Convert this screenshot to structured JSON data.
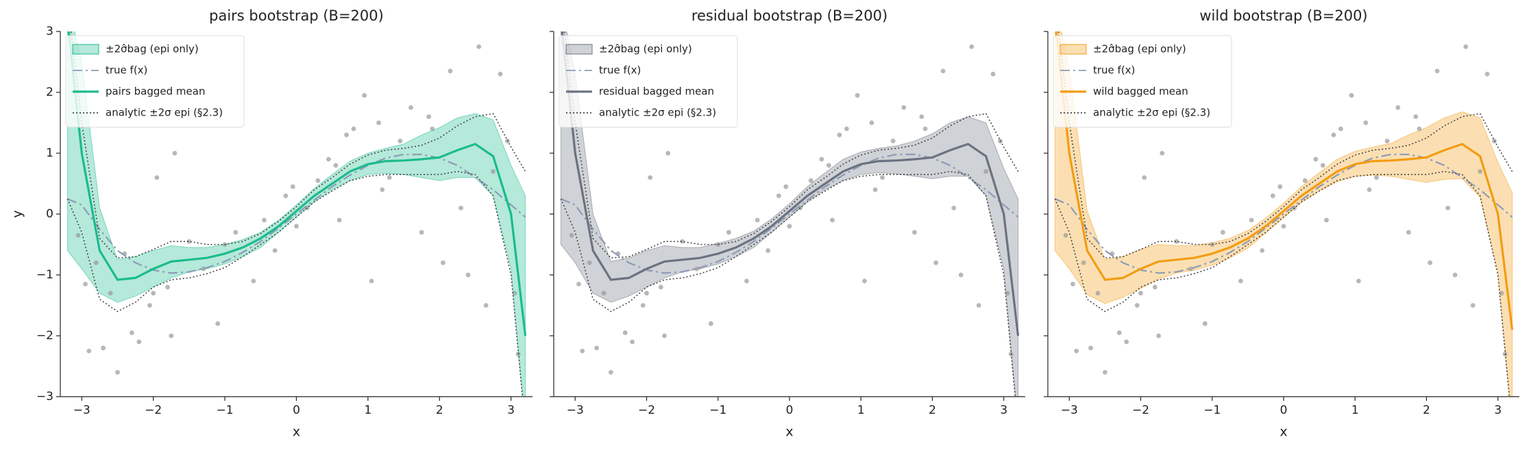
{
  "chart_data": [
    {
      "type": "line",
      "title": "pairs bootstrap (B=200)",
      "xlabel": "x",
      "ylabel": "y",
      "ytick_labels": true,
      "xlim": [
        -3.3,
        3.3
      ],
      "ylim": [
        -3,
        3
      ],
      "xticks": [
        {
          "value": -3,
          "label": "−3"
        },
        {
          "value": -2,
          "label": "−2"
        },
        {
          "value": -1,
          "label": "−1"
        },
        0,
        1,
        2,
        3
      ],
      "yticks": [
        {
          "value": -3,
          "label": "−3"
        },
        {
          "value": -2,
          "label": "−2"
        },
        {
          "value": -1,
          "label": "−1"
        },
        0,
        1,
        2,
        3
      ],
      "legend": "upper left",
      "x": [
        -3.2,
        -3,
        -2.75,
        -2.5,
        -2.25,
        -2,
        -1.75,
        -1.5,
        -1.25,
        -1,
        -0.75,
        -0.5,
        -0.25,
        0,
        0.25,
        0.5,
        0.75,
        1,
        1.25,
        1.5,
        1.75,
        2,
        2.25,
        2.5,
        2.75,
        3,
        3.2
      ],
      "series": [
        {
          "name": "±2σ̂bag (epi only)",
          "kind": "band",
          "color": "#1abc8c",
          "upper": [
            3.5,
            2.5,
            0.1,
            -0.75,
            -0.7,
            -0.6,
            -0.52,
            -0.55,
            -0.55,
            -0.5,
            -0.42,
            -0.3,
            -0.1,
            0.15,
            0.42,
            0.65,
            0.87,
            1.0,
            1.08,
            1.15,
            1.3,
            1.42,
            1.58,
            1.65,
            1.55,
            0.8,
            0.3
          ],
          "lower": [
            -0.6,
            -0.9,
            -1.3,
            -1.45,
            -1.35,
            -1.2,
            -1.05,
            -0.95,
            -0.9,
            -0.82,
            -0.7,
            -0.55,
            -0.3,
            -0.05,
            0.2,
            0.4,
            0.55,
            0.65,
            0.67,
            0.65,
            0.6,
            0.55,
            0.6,
            0.6,
            0.3,
            -0.9,
            -3.5
          ]
        },
        {
          "name": "true f(x)",
          "kind": "line",
          "style": "dashdot",
          "color": "#8c9bb5",
          "values": [
            0.25,
            0.15,
            -0.25,
            -0.6,
            -0.8,
            -0.92,
            -0.97,
            -0.95,
            -0.88,
            -0.78,
            -0.63,
            -0.45,
            -0.23,
            0,
            0.23,
            0.45,
            0.64,
            0.8,
            0.92,
            0.98,
            0.98,
            0.92,
            0.8,
            0.6,
            0.4,
            0.15,
            -0.05
          ]
        },
        {
          "name": "pairs bagged mean",
          "kind": "line",
          "style": "solid",
          "color": "#1abc8c",
          "values": [
            3.2,
            1.0,
            -0.6,
            -1.08,
            -1.05,
            -0.9,
            -0.78,
            -0.75,
            -0.72,
            -0.65,
            -0.55,
            -0.4,
            -0.2,
            0.05,
            0.3,
            0.5,
            0.7,
            0.82,
            0.87,
            0.88,
            0.9,
            0.93,
            1.05,
            1.15,
            0.95,
            0.0,
            -2.0
          ]
        },
        {
          "name": "analytic ±2σ epi (§2.3)",
          "kind": "bounds",
          "style": "dotted",
          "color": "#444444",
          "upper": [
            3.5,
            1.5,
            -0.4,
            -0.72,
            -0.7,
            -0.58,
            -0.45,
            -0.45,
            -0.5,
            -0.5,
            -0.45,
            -0.32,
            -0.12,
            0.12,
            0.4,
            0.6,
            0.82,
            0.97,
            1.05,
            1.08,
            1.13,
            1.25,
            1.45,
            1.6,
            1.65,
            1.1,
            0.7
          ],
          "lower": [
            0.25,
            -0.3,
            -1.4,
            -1.6,
            -1.45,
            -1.2,
            -1.08,
            -1.05,
            -0.98,
            -0.88,
            -0.7,
            -0.5,
            -0.3,
            -0.05,
            0.2,
            0.38,
            0.55,
            0.62,
            0.65,
            0.65,
            0.65,
            0.65,
            0.7,
            0.65,
            0.3,
            -1.0,
            -3.5
          ]
        }
      ],
      "points": {
        "color": "#999999",
        "x": [
          -3.05,
          -2.95,
          -2.9,
          -2.8,
          -2.7,
          -2.6,
          -2.5,
          -2.4,
          -2.3,
          -2.2,
          -2.05,
          -1.95,
          -1.8,
          -1.75,
          -1.7,
          -1.5,
          -1.3,
          -1.1,
          -1.0,
          -0.85,
          -0.6,
          -0.45,
          -0.3,
          -0.15,
          0.0,
          0.15,
          0.3,
          0.45,
          0.6,
          0.7,
          0.8,
          0.95,
          1.05,
          1.15,
          1.3,
          1.45,
          1.6,
          1.75,
          1.9,
          2.05,
          2.15,
          2.3,
          2.4,
          2.55,
          2.65,
          2.75,
          2.85,
          2.95,
          3.05,
          3.1,
          1.85,
          -0.05,
          0.55,
          1.2,
          -2.0
        ],
        "y": [
          -0.35,
          -1.15,
          -2.25,
          -0.8,
          -2.2,
          -1.3,
          -2.6,
          -0.65,
          -1.95,
          -2.1,
          -1.5,
          0.6,
          -1.2,
          -2.0,
          1.0,
          -0.45,
          -0.9,
          -1.8,
          -0.5,
          -0.3,
          -1.1,
          -0.1,
          -0.6,
          0.3,
          -0.2,
          0.1,
          0.55,
          0.9,
          -0.1,
          1.3,
          1.4,
          1.95,
          -1.1,
          1.5,
          0.6,
          1.2,
          1.75,
          -0.3,
          1.4,
          -0.8,
          2.35,
          0.1,
          -1.0,
          2.75,
          -1.5,
          0.7,
          2.3,
          1.2,
          -1.3,
          -2.3,
          1.6,
          0.45,
          0.8,
          0.4,
          -1.3
        ]
      }
    },
    {
      "type": "line",
      "title": "residual bootstrap (B=200)",
      "xlabel": "x",
      "ytick_labels": false,
      "xlim": [
        -3.3,
        3.3
      ],
      "ylim": [
        -3,
        3
      ],
      "xticks": [
        {
          "value": -3,
          "label": "−3"
        },
        {
          "value": -2,
          "label": "−2"
        },
        {
          "value": -1,
          "label": "−1"
        },
        0,
        1,
        2,
        3
      ],
      "yticks": [
        -3,
        -2,
        -1,
        0,
        1,
        2,
        3
      ],
      "legend": "upper left",
      "x": [
        -3.2,
        -3,
        -2.75,
        -2.5,
        -2.25,
        -2,
        -1.75,
        -1.5,
        -1.25,
        -1,
        -0.75,
        -0.5,
        -0.25,
        0,
        0.25,
        0.5,
        0.75,
        1,
        1.25,
        1.5,
        1.75,
        2,
        2.25,
        2.5,
        2.75,
        3,
        3.2
      ],
      "series": [
        {
          "name": "±2σ̂bag (epi only)",
          "kind": "band",
          "color": "#6b7280",
          "upper": [
            3.5,
            2.3,
            0.0,
            -0.78,
            -0.72,
            -0.6,
            -0.52,
            -0.55,
            -0.55,
            -0.48,
            -0.4,
            -0.28,
            -0.08,
            0.17,
            0.45,
            0.68,
            0.9,
            1.02,
            1.08,
            1.12,
            1.2,
            1.32,
            1.5,
            1.6,
            1.5,
            0.75,
            0.25
          ],
          "lower": [
            -0.5,
            -0.8,
            -1.3,
            -1.45,
            -1.35,
            -1.2,
            -1.05,
            -0.95,
            -0.9,
            -0.82,
            -0.7,
            -0.55,
            -0.3,
            -0.05,
            0.2,
            0.4,
            0.55,
            0.65,
            0.68,
            0.66,
            0.62,
            0.58,
            0.62,
            0.62,
            0.3,
            -0.9,
            -3.5
          ]
        },
        {
          "name": "true f(x)",
          "kind": "line",
          "style": "dashdot",
          "color": "#8c9bb5",
          "values": [
            0.25,
            0.15,
            -0.25,
            -0.6,
            -0.8,
            -0.92,
            -0.97,
            -0.95,
            -0.88,
            -0.78,
            -0.63,
            -0.45,
            -0.23,
            0,
            0.23,
            0.45,
            0.64,
            0.8,
            0.92,
            0.98,
            0.98,
            0.92,
            0.8,
            0.6,
            0.4,
            0.15,
            -0.05
          ]
        },
        {
          "name": "residual bagged mean",
          "kind": "line",
          "style": "solid",
          "color": "#6b7280",
          "values": [
            3.2,
            1.0,
            -0.6,
            -1.08,
            -1.05,
            -0.9,
            -0.78,
            -0.75,
            -0.72,
            -0.65,
            -0.55,
            -0.4,
            -0.2,
            0.05,
            0.3,
            0.5,
            0.7,
            0.82,
            0.87,
            0.88,
            0.9,
            0.93,
            1.05,
            1.15,
            0.95,
            0.0,
            -2.0
          ]
        },
        {
          "name": "analytic ±2σ epi (§2.3)",
          "kind": "bounds",
          "style": "dotted",
          "color": "#444444",
          "upper": [
            3.5,
            1.5,
            -0.4,
            -0.72,
            -0.7,
            -0.58,
            -0.45,
            -0.45,
            -0.5,
            -0.5,
            -0.45,
            -0.32,
            -0.12,
            0.12,
            0.4,
            0.6,
            0.82,
            0.97,
            1.05,
            1.08,
            1.13,
            1.25,
            1.45,
            1.6,
            1.65,
            1.1,
            0.7
          ],
          "lower": [
            0.25,
            -0.3,
            -1.4,
            -1.6,
            -1.45,
            -1.2,
            -1.08,
            -1.05,
            -0.98,
            -0.88,
            -0.7,
            -0.5,
            -0.3,
            -0.05,
            0.2,
            0.38,
            0.55,
            0.62,
            0.65,
            0.65,
            0.65,
            0.65,
            0.7,
            0.65,
            0.3,
            -1.0,
            -3.5
          ]
        }
      ],
      "points": {
        "color": "#999999",
        "x": [
          -3.05,
          -2.95,
          -2.9,
          -2.8,
          -2.7,
          -2.6,
          -2.5,
          -2.4,
          -2.3,
          -2.2,
          -2.05,
          -1.95,
          -1.8,
          -1.75,
          -1.7,
          -1.5,
          -1.3,
          -1.1,
          -1.0,
          -0.85,
          -0.6,
          -0.45,
          -0.3,
          -0.15,
          0.0,
          0.15,
          0.3,
          0.45,
          0.6,
          0.7,
          0.8,
          0.95,
          1.05,
          1.15,
          1.3,
          1.45,
          1.6,
          1.75,
          1.9,
          2.05,
          2.15,
          2.3,
          2.4,
          2.55,
          2.65,
          2.75,
          2.85,
          2.95,
          3.05,
          3.1,
          1.85,
          -0.05,
          0.55,
          1.2,
          -2.0
        ],
        "y": [
          -0.35,
          -1.15,
          -2.25,
          -0.8,
          -2.2,
          -1.3,
          -2.6,
          -0.65,
          -1.95,
          -2.1,
          -1.5,
          0.6,
          -1.2,
          -2.0,
          1.0,
          -0.45,
          -0.9,
          -1.8,
          -0.5,
          -0.3,
          -1.1,
          -0.1,
          -0.6,
          0.3,
          -0.2,
          0.1,
          0.55,
          0.9,
          -0.1,
          1.3,
          1.4,
          1.95,
          -1.1,
          1.5,
          0.6,
          1.2,
          1.75,
          -0.3,
          1.4,
          -0.8,
          2.35,
          0.1,
          -1.0,
          2.75,
          -1.5,
          0.7,
          2.3,
          1.2,
          -1.3,
          -2.3,
          1.6,
          0.45,
          0.8,
          0.4,
          -1.3
        ]
      }
    },
    {
      "type": "line",
      "title": "wild bootstrap (B=200)",
      "xlabel": "x",
      "ytick_labels": false,
      "xlim": [
        -3.3,
        3.3
      ],
      "ylim": [
        -3,
        3
      ],
      "xticks": [
        {
          "value": -3,
          "label": "−3"
        },
        {
          "value": -2,
          "label": "−2"
        },
        {
          "value": -1,
          "label": "−1"
        },
        0,
        1,
        2,
        3
      ],
      "yticks": [
        -3,
        -2,
        -1,
        0,
        1,
        2,
        3
      ],
      "legend": "upper left",
      "x": [
        -3.2,
        -3,
        -2.75,
        -2.5,
        -2.25,
        -2,
        -1.75,
        -1.5,
        -1.25,
        -1,
        -0.75,
        -0.5,
        -0.25,
        0,
        0.25,
        0.5,
        0.75,
        1,
        1.25,
        1.5,
        1.75,
        2,
        2.25,
        2.5,
        2.75,
        3,
        3.2
      ],
      "series": [
        {
          "name": "±2σ̂bag (epi only)",
          "kind": "band",
          "color": "#f39c12",
          "upper": [
            3.5,
            2.4,
            0.05,
            -0.75,
            -0.7,
            -0.58,
            -0.5,
            -0.52,
            -0.52,
            -0.47,
            -0.4,
            -0.27,
            -0.07,
            0.18,
            0.45,
            0.68,
            0.9,
            1.03,
            1.1,
            1.16,
            1.3,
            1.42,
            1.58,
            1.68,
            1.58,
            0.85,
            0.35
          ],
          "lower": [
            -0.6,
            -0.9,
            -1.32,
            -1.47,
            -1.37,
            -1.22,
            -1.07,
            -0.97,
            -0.92,
            -0.84,
            -0.72,
            -0.56,
            -0.31,
            -0.06,
            0.19,
            0.38,
            0.53,
            0.62,
            0.64,
            0.62,
            0.57,
            0.52,
            0.57,
            0.58,
            0.28,
            -0.95,
            -3.5
          ]
        },
        {
          "name": "true f(x)",
          "kind": "line",
          "style": "dashdot",
          "color": "#8c9bb5",
          "values": [
            0.25,
            0.15,
            -0.25,
            -0.6,
            -0.8,
            -0.92,
            -0.97,
            -0.95,
            -0.88,
            -0.78,
            -0.63,
            -0.45,
            -0.23,
            0,
            0.23,
            0.45,
            0.64,
            0.8,
            0.92,
            0.98,
            0.98,
            0.92,
            0.8,
            0.6,
            0.4,
            0.15,
            -0.05
          ]
        },
        {
          "name": "wild bagged mean",
          "kind": "line",
          "style": "solid",
          "color": "#f39c12",
          "values": [
            3.2,
            1.0,
            -0.6,
            -1.08,
            -1.05,
            -0.9,
            -0.78,
            -0.75,
            -0.72,
            -0.65,
            -0.55,
            -0.4,
            -0.2,
            0.05,
            0.3,
            0.5,
            0.7,
            0.82,
            0.87,
            0.88,
            0.9,
            0.93,
            1.05,
            1.15,
            0.95,
            0.0,
            -1.9
          ]
        },
        {
          "name": "analytic ±2σ epi (§2.3)",
          "kind": "bounds",
          "style": "dotted",
          "color": "#444444",
          "upper": [
            3.5,
            1.5,
            -0.4,
            -0.72,
            -0.7,
            -0.58,
            -0.45,
            -0.45,
            -0.5,
            -0.5,
            -0.45,
            -0.32,
            -0.12,
            0.12,
            0.4,
            0.6,
            0.82,
            0.97,
            1.05,
            1.08,
            1.13,
            1.25,
            1.45,
            1.6,
            1.65,
            1.1,
            0.7
          ],
          "lower": [
            0.25,
            -0.3,
            -1.4,
            -1.6,
            -1.45,
            -1.2,
            -1.08,
            -1.05,
            -0.98,
            -0.88,
            -0.7,
            -0.5,
            -0.3,
            -0.05,
            0.2,
            0.38,
            0.55,
            0.62,
            0.65,
            0.65,
            0.65,
            0.65,
            0.7,
            0.65,
            0.3,
            -1.0,
            -3.5
          ]
        }
      ],
      "points": {
        "color": "#999999",
        "x": [
          -3.05,
          -2.95,
          -2.9,
          -2.8,
          -2.7,
          -2.6,
          -2.5,
          -2.4,
          -2.3,
          -2.2,
          -2.05,
          -1.95,
          -1.8,
          -1.75,
          -1.7,
          -1.5,
          -1.3,
          -1.1,
          -1.0,
          -0.85,
          -0.6,
          -0.45,
          -0.3,
          -0.15,
          0.0,
          0.15,
          0.3,
          0.45,
          0.6,
          0.7,
          0.8,
          0.95,
          1.05,
          1.15,
          1.3,
          1.45,
          1.6,
          1.75,
          1.9,
          2.05,
          2.15,
          2.3,
          2.4,
          2.55,
          2.65,
          2.75,
          2.85,
          2.95,
          3.05,
          3.1,
          1.85,
          -0.05,
          0.55,
          1.2,
          -2.0
        ],
        "y": [
          -0.35,
          -1.15,
          -2.25,
          -0.8,
          -2.2,
          -1.3,
          -2.6,
          -0.65,
          -1.95,
          -2.1,
          -1.5,
          0.6,
          -1.2,
          -2.0,
          1.0,
          -0.45,
          -0.9,
          -1.8,
          -0.5,
          -0.3,
          -1.1,
          -0.1,
          -0.6,
          0.3,
          -0.2,
          0.1,
          0.55,
          0.9,
          -0.1,
          1.3,
          1.4,
          1.95,
          -1.1,
          1.5,
          0.6,
          1.2,
          1.75,
          -0.3,
          1.4,
          -0.8,
          2.35,
          0.1,
          -1.0,
          2.75,
          -1.5,
          0.7,
          2.3,
          1.2,
          -1.3,
          -2.3,
          1.6,
          0.45,
          0.8,
          0.4,
          -1.3
        ]
      }
    }
  ]
}
